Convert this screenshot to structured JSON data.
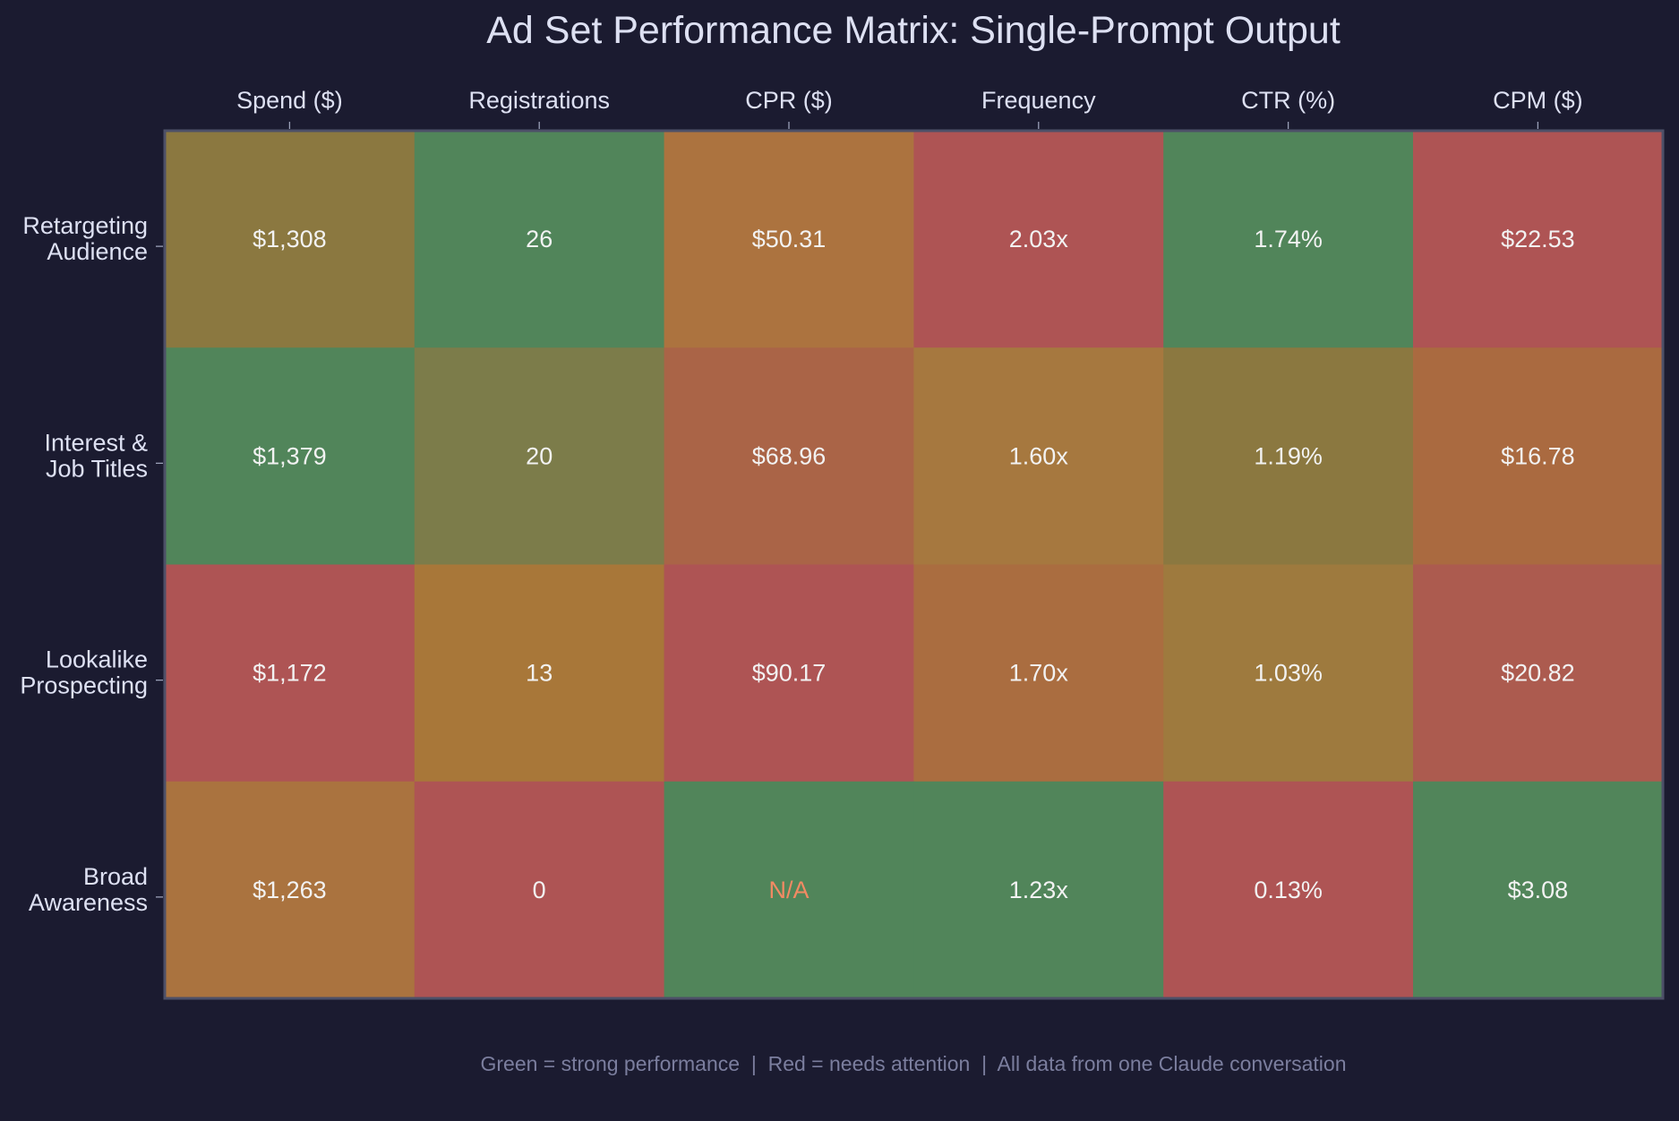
{
  "chart_data": {
    "type": "heatmap",
    "title": "Ad Set Performance Matrix: Single-Prompt Output",
    "columns": [
      "Spend ($)",
      "Registrations",
      "CPR ($)",
      "Frequency",
      "CTR (%)",
      "CPM ($)"
    ],
    "rows": [
      [
        "Retargeting",
        "Audience"
      ],
      [
        "Interest &",
        "Job Titles"
      ],
      [
        "Lookalike",
        "Prospecting"
      ],
      [
        "Broad",
        "Awareness"
      ]
    ],
    "values": [
      [
        1308,
        26,
        50.31,
        2.03,
        1.74,
        22.53
      ],
      [
        1379,
        20,
        68.96,
        1.6,
        1.19,
        16.78
      ],
      [
        1172,
        13,
        90.17,
        1.7,
        1.03,
        20.82
      ],
      [
        1263,
        0,
        null,
        1.23,
        0.13,
        3.08
      ]
    ],
    "labels": [
      [
        "$1,308",
        "26",
        "$50.31",
        "2.03x",
        "1.74%",
        "$22.53"
      ],
      [
        "$1,379",
        "20",
        "$68.96",
        "1.60x",
        "1.19%",
        "$16.78"
      ],
      [
        "$1,172",
        "13",
        "$90.17",
        "1.70x",
        "1.03%",
        "$20.82"
      ],
      [
        "$1,263",
        "0",
        "N/A",
        "1.23x",
        "0.13%",
        "$3.08"
      ]
    ],
    "colors": [
      [
        "#8b7840",
        "#51855a",
        "#ac733f",
        "#ae5454",
        "#51855a",
        "#ae5454"
      ],
      [
        "#51855a",
        "#7c7c4a",
        "#aa6447",
        "#a6783f",
        "#8b7840",
        "#aa6a40"
      ],
      [
        "#ae5454",
        "#a87739",
        "#ae5454",
        "#aa6d40",
        "#9e7a3e",
        "#ac5b4f"
      ],
      [
        "#aa733f",
        "#ae5454",
        "#51855a",
        "#51855a",
        "#ae5454",
        "#51855a"
      ]
    ],
    "na_color": "#f28a63",
    "legend": "none",
    "grid": false
  },
  "footnote": "Green = strong performance  |  Red = needs attention  |  All data from one Claude conversation"
}
